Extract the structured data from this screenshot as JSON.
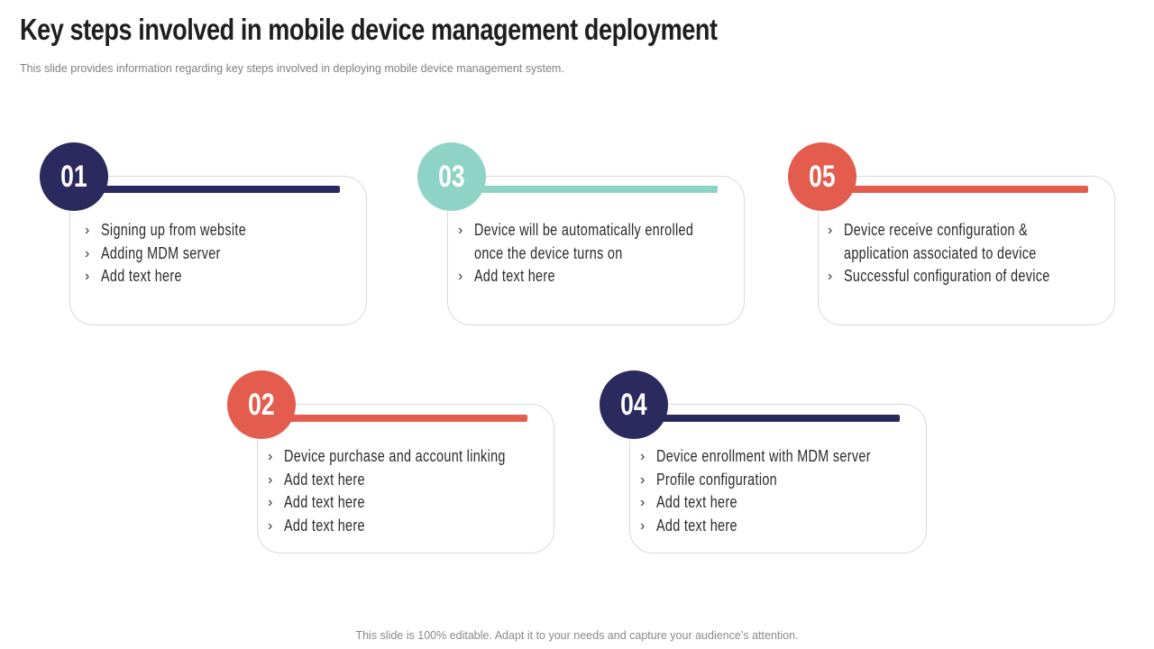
{
  "title": "Key steps involved in mobile device management deployment",
  "subtitle": "This slide provides information regarding key steps involved in deploying mobile device management system.",
  "footer": "This slide is 100% editable. Adapt it to your needs and capture your audience’s attention.",
  "colors": {
    "navy": "#2b2a5e",
    "teal": "#8fd3c7",
    "coral": "#e45c4d"
  },
  "steps": [
    {
      "number": "01",
      "color": "#2b2a5e",
      "items": [
        "Signing up from website",
        "Adding MDM server",
        "Add text here"
      ]
    },
    {
      "number": "02",
      "color": "#e45c4d",
      "items": [
        "Device purchase and account linking",
        "Add text here",
        "Add text here",
        "Add text here"
      ]
    },
    {
      "number": "03",
      "color": "#8fd3c7",
      "items": [
        "Device will be automatically enrolled once the device turns on",
        "Add text here"
      ]
    },
    {
      "number": "04",
      "color": "#2b2a5e",
      "items": [
        "Device enrollment with MDM server",
        "Profile configuration",
        "Add text here",
        "Add text here"
      ]
    },
    {
      "number": "05",
      "color": "#e45c4d",
      "items": [
        "Device receive configuration & application associated to device",
        "Successful configuration of device"
      ]
    }
  ],
  "chevron": "›"
}
